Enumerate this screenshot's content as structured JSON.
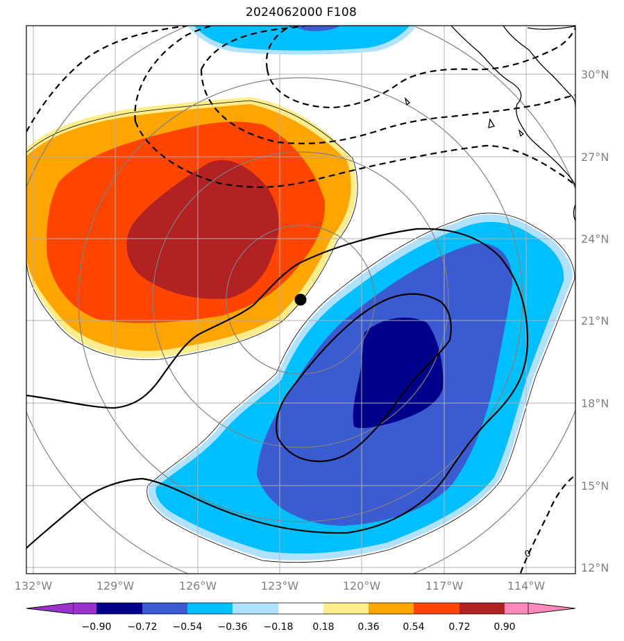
{
  "title": "2024062000 F108",
  "lat_labels": [
    "30°N",
    "27°N",
    "24°N",
    "21°N",
    "18°N",
    "15°N",
    "12°N"
  ],
  "lon_labels": [
    "132°W",
    "129°W",
    "126°W",
    "123°W",
    "120°W",
    "117°W",
    "114°W"
  ],
  "contour_label": "0",
  "colorbar": {
    "ticks": [
      "−0.90",
      "−0.72",
      "−0.54",
      "−0.36",
      "−0.18",
      "0.18",
      "0.36",
      "0.54",
      "0.72",
      "0.90"
    ],
    "colors": [
      "#9932cc",
      "#00008b",
      "#3b5bd0",
      "#00bfff",
      "#b0e2ff",
      "#ffffff",
      "#ffec8b",
      "#ffa500",
      "#ff4500",
      "#b22222",
      "#ff88bb"
    ]
  },
  "storm_center": {
    "lon": -122.3,
    "lat": 21.8
  },
  "colors": {
    "positive_dark": "#b22222",
    "positive_mid": "#ff4500",
    "positive_light": "#ffa500",
    "positive_lightest": "#ffec8b",
    "negative_lightest": "#b0e2ff",
    "negative_light": "#00bfff",
    "negative_mid": "#3b5bd0",
    "negative_dark": "#00008b",
    "grid": "#808080"
  }
}
